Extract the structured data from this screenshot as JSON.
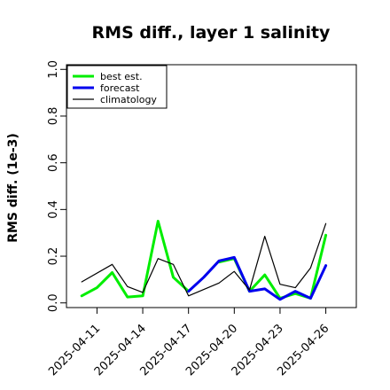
{
  "chart_data": {
    "type": "line",
    "title": "RMS diff., layer 1 salinity",
    "ylabel": "RMS diff. (1e-3)",
    "xlabel": "",
    "ylim": [
      -0.02,
      1.02
    ],
    "yticks": [
      0.0,
      0.2,
      0.4,
      0.6,
      0.8,
      1.0
    ],
    "ytick_labels": [
      "0.0",
      "0.2",
      "0.4",
      "0.6",
      "0.8",
      "1.0"
    ],
    "x_range": [
      "2025-04-09",
      "2025-04-28"
    ],
    "xticks": [
      {
        "date": "2025-04-11",
        "label": "2025-04-11",
        "color": "#000000"
      },
      {
        "date": "2025-04-14",
        "label": "2025-04-14",
        "color": "#000000"
      },
      {
        "date": "2025-04-17",
        "label": "2025-04-17",
        "color": "#228B22"
      },
      {
        "date": "2025-04-20",
        "label": "2025-04-20",
        "color": "#000000"
      },
      {
        "date": "2025-04-23",
        "label": "2025-04-23",
        "color": "#000000"
      },
      {
        "date": "2025-04-26",
        "label": "2025-04-26",
        "color": "#000000"
      }
    ],
    "legend_position": "top-left",
    "series": [
      {
        "name": "best est.",
        "color": "#00ee00",
        "x": [
          "2025-04-10",
          "2025-04-11",
          "2025-04-12",
          "2025-04-13",
          "2025-04-14",
          "2025-04-15",
          "2025-04-16",
          "2025-04-17"
        ],
        "values": [
          0.03,
          0.065,
          0.13,
          0.025,
          0.03,
          0.35,
          0.11,
          0.05
        ]
      },
      {
        "name": "best est.",
        "color": "#00ee00",
        "x": [
          "2025-04-19",
          "2025-04-20",
          "2025-04-21",
          "2025-04-22",
          "2025-04-23",
          "2025-04-24",
          "2025-04-25",
          "2025-04-26"
        ],
        "values": [
          0.175,
          0.19,
          0.05,
          0.12,
          0.02,
          0.04,
          0.02,
          0.29
        ]
      },
      {
        "name": "forecast",
        "color": "#0000ee",
        "x": [
          "2025-04-17",
          "2025-04-18",
          "2025-04-19",
          "2025-04-20",
          "2025-04-21",
          "2025-04-22",
          "2025-04-23",
          "2025-04-24",
          "2025-04-25",
          "2025-04-26"
        ],
        "values": [
          0.05,
          0.11,
          0.18,
          0.195,
          0.05,
          0.06,
          0.015,
          0.05,
          0.02,
          0.16
        ]
      },
      {
        "name": "climatology",
        "color": "#000000",
        "x": [
          "2025-04-10",
          "2025-04-12",
          "2025-04-13",
          "2025-04-14",
          "2025-04-15",
          "2025-04-16",
          "2025-04-17",
          "2025-04-19",
          "2025-04-20",
          "2025-04-21",
          "2025-04-22",
          "2025-04-23",
          "2025-04-24",
          "2025-04-25",
          "2025-04-26"
        ],
        "values": [
          0.09,
          0.165,
          0.07,
          0.045,
          0.19,
          0.165,
          0.03,
          0.085,
          0.135,
          0.055,
          0.285,
          0.08,
          0.065,
          0.15,
          0.34
        ]
      }
    ]
  }
}
